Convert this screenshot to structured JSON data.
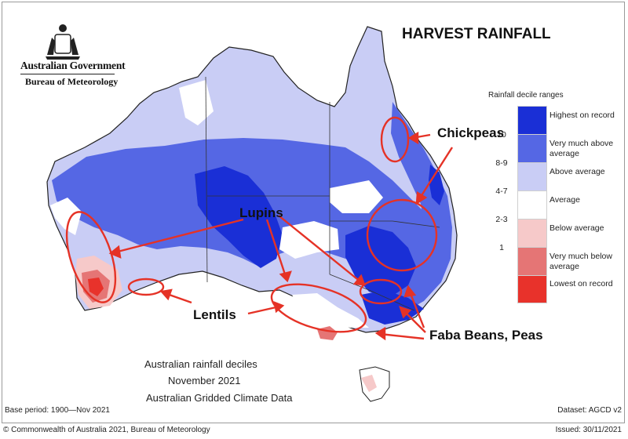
{
  "header": {
    "government": "Australian Government",
    "agency": "Bureau of Meteorology",
    "title": "HARVEST RAINFALL"
  },
  "legend": {
    "title": "Rainfall decile ranges",
    "items": [
      {
        "decile": "",
        "label": "Highest on record",
        "color": "#1a2fd6"
      },
      {
        "decile": "10",
        "label": "Very much above average",
        "color": "#5567e4"
      },
      {
        "decile": "8-9",
        "label": "Above average",
        "color": "#c9cdf5"
      },
      {
        "decile": "4-7",
        "label": "Average",
        "color": "#ffffff"
      },
      {
        "decile": "2-3",
        "label": "Below average",
        "color": "#f6c9c9"
      },
      {
        "decile": "1",
        "label": "Very much below average",
        "color": "#e57575"
      },
      {
        "decile": "",
        "label": "Lowest on record",
        "color": "#e8322b"
      }
    ]
  },
  "annotations": {
    "chickpeas": "Chickpeas",
    "lupins": "Lupins",
    "lentils": "Lentils",
    "faba_peas": "Faba Beans, Peas"
  },
  "caption": {
    "line1": "Australian rainfall deciles",
    "line2": "November 2021",
    "line3": "Australian Gridded Climate Data"
  },
  "footer": {
    "base_period": "Base period: 1900—Nov 2021",
    "dataset": "Dataset: AGCD v2",
    "copyright": "© Commonwealth of Australia 2021, Bureau of Meteorology",
    "issued": "Issued: 30/11/2021"
  },
  "colors": {
    "annotation_red": "#e53226",
    "state_border": "#333333"
  }
}
